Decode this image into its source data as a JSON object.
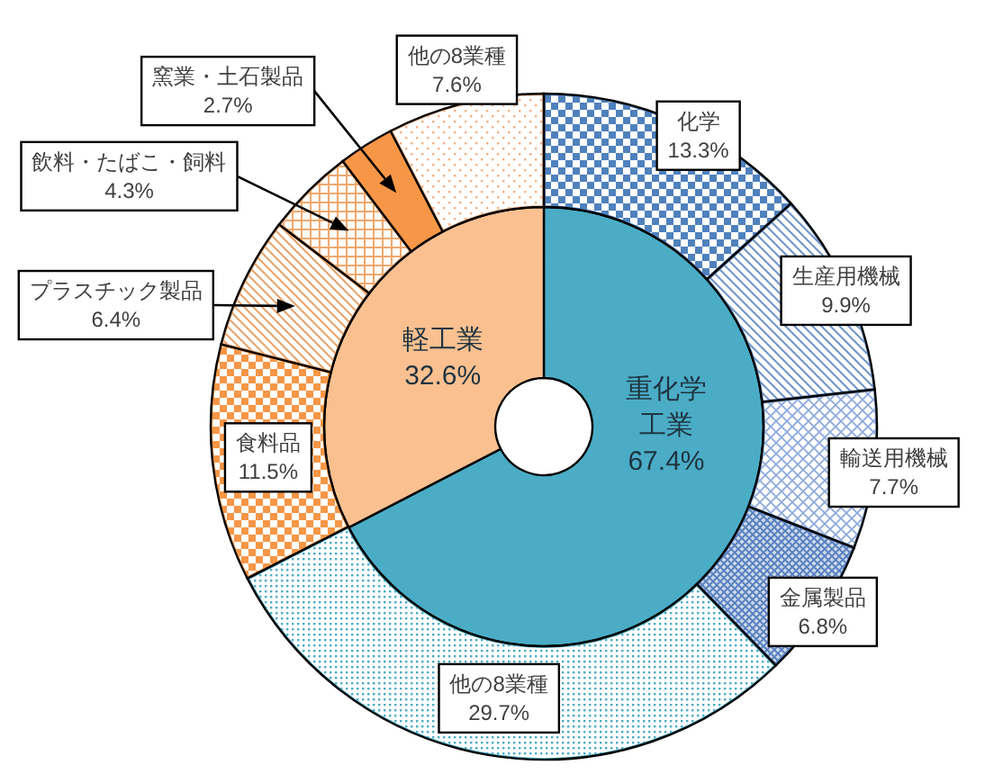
{
  "chart_data": [
    {
      "type": "donut",
      "categories": [
        "重化学工業",
        "軽工業"
      ],
      "values": [
        67.4,
        32.6
      ],
      "value_labels": [
        "67.4%",
        "32.6%"
      ],
      "colors": [
        "#4bacc6",
        "#fac090"
      ]
    },
    {
      "type": "donut",
      "categories": [
        "化学",
        "生産用機械",
        "輸送用機械",
        "金属製品",
        "他の8業種",
        "食料品",
        "プラスチック製品",
        "飲料・たばこ・飼料",
        "窯業・土石製品",
        "他の8業種"
      ],
      "values": [
        13.3,
        9.9,
        7.7,
        6.8,
        29.7,
        11.5,
        6.4,
        4.3,
        2.7,
        7.6
      ],
      "value_labels": [
        "13.3%",
        "9.9%",
        "7.7%",
        "6.8%",
        "29.7%",
        "11.5%",
        "6.4%",
        "4.3%",
        "2.7%",
        "7.6%"
      ],
      "colors": [
        "#4f81bd",
        "#6f95c8",
        "#8eaadb",
        "#5b82c0",
        "#4bacc6",
        "#f79646",
        "#e9a36a",
        "#f0a86e",
        "#f79646",
        "#f4b183"
      ]
    }
  ]
}
